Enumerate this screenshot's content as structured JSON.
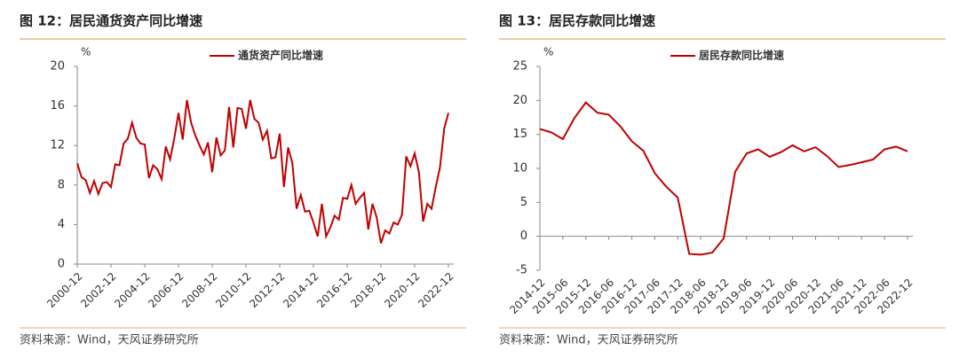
{
  "chart_data": [
    {
      "type": "line",
      "title": "图 12：居民通货资产同比增速",
      "y_label": "%",
      "source": "资料来源：Wind，天风证券研究所",
      "categories": [
        "2000-12",
        null,
        null,
        null,
        null,
        null,
        null,
        null,
        "2002-12",
        null,
        null,
        null,
        null,
        null,
        null,
        null,
        "2004-12",
        null,
        null,
        null,
        null,
        null,
        null,
        null,
        "2006-12",
        null,
        null,
        null,
        null,
        null,
        null,
        null,
        "2008-12",
        null,
        null,
        null,
        null,
        null,
        null,
        null,
        "2010-12",
        null,
        null,
        null,
        null,
        null,
        null,
        null,
        "2012-12",
        null,
        null,
        null,
        null,
        null,
        null,
        null,
        "2014-12",
        null,
        null,
        null,
        null,
        null,
        null,
        null,
        "2016-12",
        null,
        null,
        null,
        null,
        null,
        null,
        null,
        "2018-12",
        null,
        null,
        null,
        null,
        null,
        null,
        null,
        "2020-12",
        null,
        null,
        null,
        null,
        null,
        null,
        null,
        "2022-12"
      ],
      "series": [
        {
          "name": "通货资产同比增速",
          "color": "#c00000",
          "values": [
            10.2,
            8.8,
            8.5,
            7.2,
            8.4,
            7.1,
            8.2,
            8.3,
            7.8,
            10.1,
            10.0,
            12.2,
            12.7,
            14.3,
            12.8,
            12.2,
            12.1,
            8.7,
            10.0,
            9.6,
            8.6,
            11.9,
            10.6,
            12.7,
            15.3,
            12.6,
            16.6,
            14.3,
            13.0,
            12.0,
            11.1,
            12.3,
            9.3,
            12.8,
            11.0,
            11.5,
            15.9,
            11.8,
            15.8,
            15.7,
            13.7,
            16.6,
            14.7,
            14.3,
            12.6,
            13.5,
            10.7,
            10.8,
            13.2,
            7.8,
            11.8,
            10.2,
            5.6,
            7.0,
            5.3,
            5.4,
            4.2,
            2.8,
            6.1,
            2.8,
            3.7,
            4.9,
            4.5,
            6.7,
            6.6,
            8.0,
            6.1,
            6.7,
            7.2,
            3.5,
            6.1,
            4.7,
            2.1,
            3.4,
            3.1,
            4.2,
            4.0,
            5.0,
            10.9,
            9.9,
            11.2,
            9.3,
            4.3,
            6.1,
            5.6,
            7.8,
            9.8,
            13.7,
            15.3
          ]
        }
      ],
      "ylim": [
        0,
        20
      ],
      "yticks": [
        0,
        4,
        8,
        12,
        16,
        20
      ]
    },
    {
      "type": "line",
      "title": "图 13：居民存款同比增速",
      "y_label": "%",
      "source": "资料来源：Wind，天风证券研究所",
      "categories": [
        "2014-12",
        null,
        "2015-06",
        null,
        "2015-12",
        null,
        "2016-06",
        null,
        "2016-12",
        null,
        "2017-06",
        null,
        "2017-12",
        null,
        "2018-06",
        null,
        "2018-12",
        null,
        "2019-06",
        null,
        "2019-12",
        null,
        "2020-06",
        null,
        "2020-12",
        null,
        "2021-06",
        null,
        "2021-12",
        null,
        "2022-06",
        null,
        "2022-12"
      ],
      "series": [
        {
          "name": "居民存款同比增速",
          "color": "#c00000",
          "values": [
            15.8,
            15.3,
            14.3,
            17.4,
            19.7,
            18.2,
            17.9,
            16.2,
            14.0,
            12.6,
            9.3,
            7.3,
            5.7,
            -2.6,
            -2.7,
            -2.4,
            -0.3,
            9.5,
            12.2,
            12.8,
            11.7,
            12.4,
            13.4,
            12.5,
            13.1,
            11.8,
            10.2,
            10.5,
            10.9,
            11.3,
            12.8,
            13.2,
            12.5
          ]
        }
      ],
      "ylim": [
        -5,
        25
      ],
      "yticks": [
        -5,
        0,
        5,
        10,
        15,
        20,
        25
      ]
    }
  ]
}
